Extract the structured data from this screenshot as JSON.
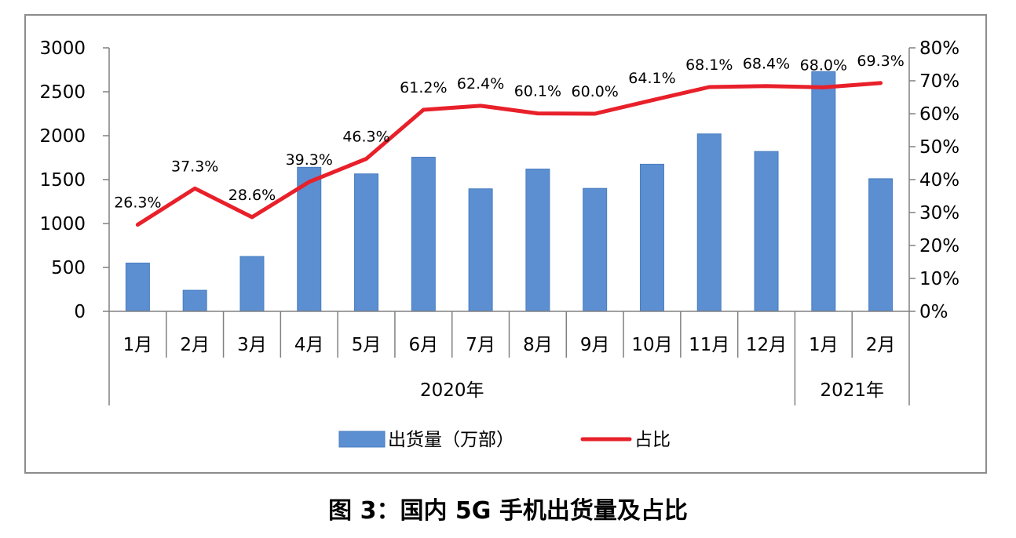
{
  "caption": "图 3：国内 5G 手机出货量及占比",
  "chart_data": {
    "type": "bar+line",
    "categories": [
      "1月",
      "2月",
      "3月",
      "4月",
      "5月",
      "6月",
      "7月",
      "8月",
      "9月",
      "10月",
      "11月",
      "12月",
      "1月",
      "2月"
    ],
    "groups": [
      {
        "label": "2020年",
        "count": 12
      },
      {
        "label": "2021年",
        "count": 2
      }
    ],
    "series": [
      {
        "name": "出货量（万部）",
        "type": "bar",
        "axis": "left",
        "color": "#5b8fd1",
        "values": [
          550,
          240,
          625,
          1640,
          1565,
          1755,
          1395,
          1620,
          1400,
          1675,
          2020,
          1820,
          2730,
          1510
        ]
      },
      {
        "name": "占比",
        "type": "line",
        "axis": "right",
        "color": "#e8202a",
        "values": [
          26.3,
          37.3,
          28.6,
          39.3,
          46.3,
          61.2,
          62.4,
          60.1,
          60.0,
          64.1,
          68.1,
          68.4,
          68.0,
          69.3
        ],
        "labels": [
          "26.3%",
          "37.3%",
          "28.6%",
          "39.3%",
          "46.3%",
          "61.2%",
          "62.4%",
          "60.1%",
          "60.0%",
          "64.1%",
          "68.1%",
          "68.4%",
          "68.0%",
          "69.3%"
        ]
      }
    ],
    "y_left": {
      "min": 0,
      "max": 3000,
      "step": 500,
      "ticks": [
        "0",
        "500",
        "1000",
        "1500",
        "2000",
        "2500",
        "3000"
      ]
    },
    "y_right": {
      "min": 0,
      "max": 80,
      "step": 10,
      "ticks": [
        "0%",
        "10%",
        "20%",
        "30%",
        "40%",
        "50%",
        "60%",
        "70%",
        "80%"
      ]
    },
    "legend": {
      "position": "bottom",
      "items": [
        "出货量（万部）",
        "占比"
      ]
    },
    "grid": false
  }
}
